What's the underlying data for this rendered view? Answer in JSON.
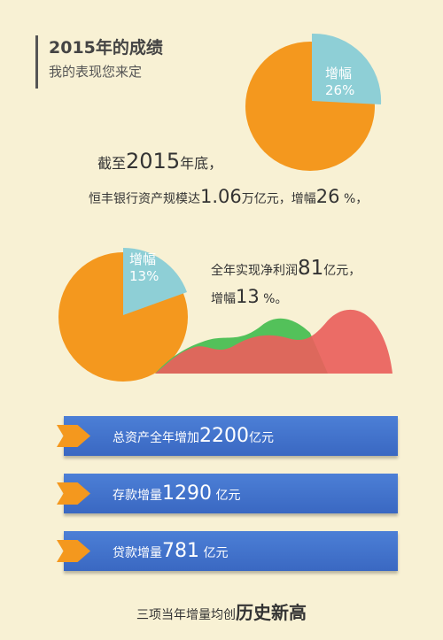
{
  "header": {
    "title": "2015年的成绩",
    "subtitle": "我的表现您来定"
  },
  "pie1": {
    "label_line1": "增幅",
    "label_line2": "26%",
    "percent": 26
  },
  "statement1": {
    "line1_prefix": "截至",
    "line1_year": "2015",
    "line1_suffix": "年底，",
    "line2_prefix": "恒丰银行资产规模达",
    "line2_value": "1.06",
    "line2_mid": "万亿元，增幅",
    "line2_pct": "26",
    "line2_suffix": " %，"
  },
  "pie2": {
    "label_line1": "增幅",
    "label_line2": "13%",
    "percent": 13
  },
  "statement2": {
    "line1_prefix": "全年实现净利润",
    "line1_value": "81",
    "line1_suffix": "亿元，",
    "line2_prefix": "增幅",
    "line2_value": "13",
    "line2_suffix": " %。"
  },
  "bars": [
    {
      "label": "总资产全年增加",
      "value": "2200",
      "unit": "亿元"
    },
    {
      "label": "存款增量",
      "value": "1290",
      "unit": " 亿元"
    },
    {
      "label": "贷款增量",
      "value": "781",
      "unit": " 亿元"
    }
  ],
  "footer": {
    "prefix": "三项当年增量均创",
    "emphasis": "历史新高"
  },
  "colors": {
    "background": "#f8f1d4",
    "pie_orange": "#f4981e",
    "pie_slice_blue": "#8ecfd6",
    "bar_blue": "#4175d0",
    "wave_red": "#e9615c",
    "wave_green": "#53c15a"
  }
}
